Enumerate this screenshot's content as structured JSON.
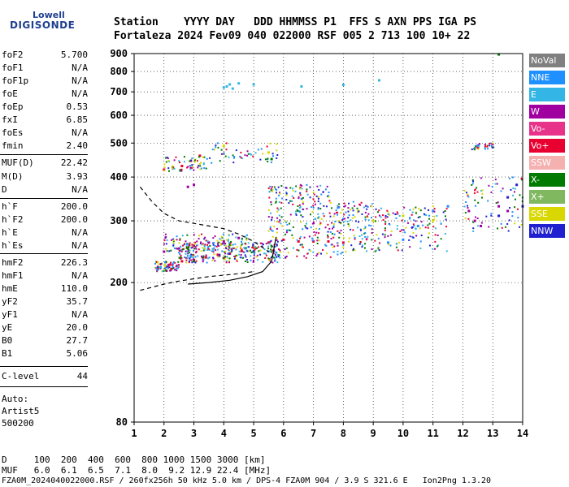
{
  "logo": {
    "top": "Lowell",
    "bottom": "DIGISONDE"
  },
  "header": {
    "row1": "Station    YYYY DAY   DDD HHMMSS P1  FFS S AXN PPS IGA PS",
    "row2": "Fortaleza 2024 Fev09 040 022000 RSF 005 2 713 100 10+ 22"
  },
  "params": [
    {
      "label": "foF2",
      "value": "5.700"
    },
    {
      "label": "foF1",
      "value": "N/A"
    },
    {
      "label": "foF1p",
      "value": "N/A"
    },
    {
      "label": "foE",
      "value": "N/A"
    },
    {
      "label": "foEp",
      "value": "0.53"
    },
    {
      "label": "fxI",
      "value": "6.85"
    },
    {
      "label": "foEs",
      "value": "N/A"
    },
    {
      "label": "fmin",
      "value": "2.40"
    },
    {
      "label": "MUF(D)",
      "value": "22.42"
    },
    {
      "label": "M(D)",
      "value": "3.93"
    },
    {
      "label": "D",
      "value": "N/A"
    },
    {
      "label": "h`F",
      "value": "200.0"
    },
    {
      "label": "h`F2",
      "value": "200.0"
    },
    {
      "label": "h`E",
      "value": "N/A"
    },
    {
      "label": "h`Es",
      "value": "N/A"
    },
    {
      "label": "hmF2",
      "value": "226.3"
    },
    {
      "label": "hmF1",
      "value": "N/A"
    },
    {
      "label": "hmE",
      "value": "110.0"
    },
    {
      "label": "yF2",
      "value": "35.7"
    },
    {
      "label": "yF1",
      "value": "N/A"
    },
    {
      "label": "yE",
      "value": "20.0"
    },
    {
      "label": "B0",
      "value": "27.7"
    },
    {
      "label": "B1",
      "value": "5.06"
    },
    {
      "label": "C-level",
      "value": "44"
    }
  ],
  "auto": [
    "Auto:",
    "Artist5",
    "500200"
  ],
  "legend": [
    {
      "label": "NoVal",
      "bg": "#808080",
      "fg": "#ffffff"
    },
    {
      "label": "NNE",
      "bg": "#1e90ff",
      "fg": "#ffffff"
    },
    {
      "label": "E",
      "bg": "#33b5e5",
      "fg": "#ffffff"
    },
    {
      "label": "W",
      "bg": "#a000a0",
      "fg": "#ffffff"
    },
    {
      "label": "Vo-",
      "bg": "#e8338a",
      "fg": "#ffffff"
    },
    {
      "label": "Vo+",
      "bg": "#e80030",
      "fg": "#ffffff"
    },
    {
      "label": "SSW",
      "bg": "#f5b0b0",
      "fg": "#ffffff"
    },
    {
      "label": "X-",
      "bg": "#007a00",
      "fg": "#ffffff"
    },
    {
      "label": "X+",
      "bg": "#80b860",
      "fg": "#ffffff"
    },
    {
      "label": "SSE",
      "bg": "#d8d800",
      "fg": "#ffffff"
    },
    {
      "label": "NNW",
      "bg": "#2020d0",
      "fg": "#ffffff"
    }
  ],
  "footer": {
    "line1": "D     100  200  400  600  800 1000 1500 3000 [km]",
    "line2": "MUF   6.0  6.1  6.5  7.1  8.0  9.2 12.9 22.4 [MHz]",
    "line3": "FZA0M_2024040022000.RSF / 260fx256h 50 kHz 5.0 km / DPS-4 FZA0M 904 / 3.9 S 321.6 E   Ion2Png 1.3.20"
  },
  "chart_data": {
    "type": "scatter",
    "title": "",
    "xlabel": "",
    "ylabel": "",
    "xlim": [
      1,
      14
    ],
    "ylim": [
      80,
      900
    ],
    "yscale": "log",
    "x_ticks": [
      1,
      2,
      3,
      4,
      5,
      6,
      7,
      8,
      9,
      10,
      11,
      12,
      13,
      14
    ],
    "y_ticks": [
      80,
      200,
      300,
      400,
      500,
      600,
      700,
      800,
      900
    ],
    "grid": true,
    "legend_placement": "right",
    "series": [
      {
        "name": "E",
        "color": "#33b5e5",
        "points": [
          [
            4.0,
            720
          ],
          [
            4.1,
            725
          ],
          [
            4.2,
            735
          ],
          [
            4.3,
            715
          ],
          [
            4.5,
            740
          ],
          [
            5.0,
            735
          ],
          [
            6.6,
            725
          ],
          [
            8.0,
            733
          ],
          [
            9.2,
            755
          ]
        ]
      },
      {
        "name": "Vo+",
        "color": "#e80030",
        "points": [
          [
            2.0,
            420
          ],
          [
            2.3,
            425
          ],
          [
            2.6,
            430
          ],
          [
            2.9,
            445
          ],
          [
            3.2,
            460
          ],
          [
            1.8,
            220
          ],
          [
            2.2,
            225
          ],
          [
            2.6,
            230
          ],
          [
            3.0,
            232
          ],
          [
            3.4,
            236
          ],
          [
            3.8,
            240
          ],
          [
            4.2,
            242
          ],
          [
            4.6,
            246
          ],
          [
            5.0,
            252
          ],
          [
            5.5,
            260
          ],
          [
            6.0,
            265
          ],
          [
            6.5,
            262
          ],
          [
            7.0,
            262
          ],
          [
            7.5,
            262
          ],
          [
            8.0,
            260
          ],
          [
            12.5,
            485
          ],
          [
            12.8,
            490
          ]
        ]
      },
      {
        "name": "W",
        "color": "#a000a0",
        "points": [
          [
            2.0,
            245
          ],
          [
            2.5,
            250
          ],
          [
            3.0,
            255
          ],
          [
            3.5,
            260
          ],
          [
            4.0,
            262
          ],
          [
            4.5,
            268
          ],
          [
            2.8,
            375
          ],
          [
            3.0,
            380
          ],
          [
            12.2,
            320
          ],
          [
            12.4,
            300
          ],
          [
            12.6,
            290
          ],
          [
            13.2,
            330
          ],
          [
            13.5,
            320
          ]
        ]
      },
      {
        "name": "NNE",
        "color": "#1e90ff",
        "points": [
          [
            9.5,
            260
          ],
          [
            10.0,
            265
          ],
          [
            10.5,
            290
          ],
          [
            11.0,
            320
          ],
          [
            11.5,
            330
          ]
        ]
      },
      {
        "name": "SSE",
        "color": "#d8d800",
        "points": [
          [
            4.0,
            490
          ],
          [
            5.5,
            470
          ],
          [
            8.5,
            320
          ],
          [
            9.0,
            300
          ],
          [
            10.0,
            310
          ],
          [
            11.0,
            300
          ]
        ]
      },
      {
        "name": "NNW",
        "color": "#2020d0",
        "points": [
          [
            13.2,
            310
          ],
          [
            13.5,
            350
          ],
          [
            13.8,
            380
          ],
          [
            14.0,
            330
          ]
        ]
      },
      {
        "name": "X-",
        "color": "#007a00",
        "points": [
          [
            3.0,
            230
          ],
          [
            4.0,
            235
          ],
          [
            5.0,
            245
          ],
          [
            5.6,
            450
          ],
          [
            13.2,
            895
          ]
        ]
      }
    ],
    "curves": [
      {
        "name": "dashed",
        "points": [
          [
            1.2,
            375
          ],
          [
            1.6,
            340
          ],
          [
            2.0,
            315
          ],
          [
            2.5,
            300
          ],
          [
            3.0,
            295
          ],
          [
            3.5,
            290
          ],
          [
            4.0,
            285
          ],
          [
            4.5,
            275
          ],
          [
            5.0,
            262
          ],
          [
            5.5,
            245
          ]
        ],
        "dash": true
      },
      {
        "name": "dashed-lower",
        "points": [
          [
            1.2,
            190
          ],
          [
            2.0,
            198
          ],
          [
            2.5,
            202
          ],
          [
            3.0,
            205
          ],
          [
            3.5,
            208
          ],
          [
            4.0,
            210
          ],
          [
            4.5,
            212
          ],
          [
            5.0,
            215
          ]
        ],
        "dash": true
      },
      {
        "name": "solid",
        "points": [
          [
            2.8,
            198
          ],
          [
            3.5,
            200
          ],
          [
            4.2,
            203
          ],
          [
            4.8,
            208
          ],
          [
            5.3,
            215
          ],
          [
            5.6,
            230
          ],
          [
            5.75,
            270
          ]
        ],
        "dash": false
      }
    ]
  }
}
